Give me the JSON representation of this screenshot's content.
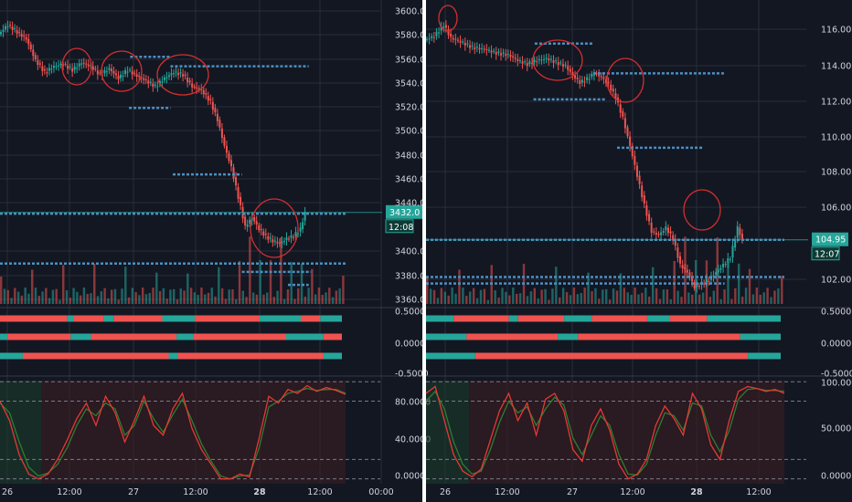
{
  "colors": {
    "background": "#131722",
    "grid": "#2a2e39",
    "up": "#26a69a",
    "down": "#ef5350",
    "axis_text": "#d1d4dc",
    "level": "#4a90c2",
    "annotation": "#d32f2f",
    "k_line": "#e53935",
    "d_line": "#2e7d32",
    "divider": "#ffffff"
  },
  "chart_data": [
    {
      "type": "candlestick",
      "panel": "left",
      "price_axis": {
        "ticks": [
          "3600.0",
          "3580.0",
          "3560.0",
          "3540.0",
          "3520.0",
          "3500.0",
          "3480.0",
          "3460.0",
          "3440.0",
          "3400.0",
          "3380.0",
          "3360.0"
        ],
        "ylim": [
          3355,
          3607
        ]
      },
      "last_price": {
        "value": "3432.0",
        "countdown": "12:08"
      },
      "time_axis": [
        "26",
        "12:00",
        "27",
        "12:00",
        "28",
        "12:00",
        "00:00"
      ],
      "close_path": [
        [
          0,
          3582
        ],
        [
          8,
          3590
        ],
        [
          16,
          3584
        ],
        [
          24,
          3578
        ],
        [
          32,
          3560
        ],
        [
          40,
          3550
        ],
        [
          48,
          3555
        ],
        [
          56,
          3557
        ],
        [
          64,
          3552
        ],
        [
          72,
          3558
        ],
        [
          80,
          3555
        ],
        [
          88,
          3548
        ],
        [
          96,
          3553
        ],
        [
          104,
          3545
        ],
        [
          112,
          3552
        ],
        [
          120,
          3547
        ],
        [
          128,
          3543
        ],
        [
          136,
          3538
        ],
        [
          144,
          3545
        ],
        [
          152,
          3550
        ],
        [
          160,
          3548
        ],
        [
          168,
          3538
        ],
        [
          176,
          3535
        ],
        [
          184,
          3525
        ],
        [
          190,
          3510
        ],
        [
          196,
          3488
        ],
        [
          202,
          3470
        ],
        [
          208,
          3445
        ],
        [
          214,
          3420
        ],
        [
          220,
          3428
        ],
        [
          226,
          3418
        ],
        [
          232,
          3412
        ],
        [
          238,
          3408
        ],
        [
          244,
          3406
        ],
        [
          250,
          3410
        ],
        [
          256,
          3412
        ],
        [
          262,
          3418
        ],
        [
          266,
          3432
        ]
      ],
      "levels": [
        {
          "price": 3563,
          "from": 113,
          "to": 148
        },
        {
          "price": 3555,
          "from": 148,
          "to": 268
        },
        {
          "price": 3520,
          "from": 112,
          "to": 148
        },
        {
          "price": 3464,
          "from": 150,
          "to": 210
        },
        {
          "price": 3431,
          "from": 0,
          "to": 300
        },
        {
          "price": 3389,
          "from": 0,
          "to": 300
        },
        {
          "price": 3382,
          "from": 210,
          "to": 270
        },
        {
          "price": 3371,
          "from": 250,
          "to": 268
        }
      ],
      "trend_bars": [
        {
          "value": "0.5000",
          "segments": [
            [
              "down",
              62
            ],
            [
              "up",
              6
            ],
            [
              "down",
              28
            ],
            [
              "up",
              9
            ],
            [
              "down",
              45
            ],
            [
              "up",
              30
            ],
            [
              "down",
              60
            ],
            [
              "up",
              38
            ],
            [
              "down",
              18
            ],
            [
              "up",
              20
            ]
          ]
        },
        {
          "value": "0.0000",
          "segments": [
            [
              "up",
              8
            ],
            [
              "down",
              68
            ],
            [
              "up",
              22
            ],
            [
              "down",
              92
            ],
            [
              "up",
              18
            ],
            [
              "down",
              100
            ],
            [
              "up",
              40
            ],
            [
              "down",
              20
            ]
          ]
        },
        {
          "value": "-0.5000",
          "segments": [
            [
              "up",
              25
            ],
            [
              "down",
              160
            ],
            [
              "up",
              10
            ],
            [
              "down",
              160
            ],
            [
              "up",
              20
            ]
          ]
        }
      ],
      "stochastic": {
        "ticks": [
          "80.0000",
          "40.0000",
          "0.0000"
        ],
        "ylim": [
          -5,
          103
        ],
        "k": [
          80,
          60,
          25,
          5,
          0,
          5,
          20,
          40,
          62,
          78,
          55,
          85,
          68,
          38,
          60,
          85,
          55,
          45,
          72,
          88,
          52,
          30,
          15,
          0,
          0,
          5,
          2,
          42,
          85,
          78,
          92,
          88,
          96,
          90,
          94,
          91,
          87
        ],
        "d": [
          78,
          68,
          38,
          12,
          3,
          6,
          15,
          32,
          55,
          72,
          65,
          78,
          72,
          45,
          55,
          80,
          62,
          48,
          66,
          82,
          60,
          36,
          18,
          3,
          0,
          3,
          4,
          32,
          74,
          80,
          88,
          90,
          93,
          91,
          92,
          92,
          88
        ]
      }
    },
    {
      "type": "candlestick",
      "panel": "right",
      "price_axis": {
        "ticks": [
          "116.00",
          "114.00",
          "112.00",
          "110.00",
          "108.00",
          "106.00",
          "102.00"
        ],
        "ylim": [
          101.5,
          117.6
        ]
      },
      "last_price": {
        "value": "104.95",
        "countdown": "12:07"
      },
      "time_axis": [
        "26",
        "12:00",
        "27",
        "12:00",
        "28",
        "12:00"
      ],
      "close_path": [
        [
          0,
          115.7
        ],
        [
          8,
          115.9
        ],
        [
          16,
          116.5
        ],
        [
          22,
          115.8
        ],
        [
          30,
          115.6
        ],
        [
          40,
          115.3
        ],
        [
          50,
          115.2
        ],
        [
          60,
          115.0
        ],
        [
          70,
          114.9
        ],
        [
          78,
          114.6
        ],
        [
          86,
          114.4
        ],
        [
          94,
          114.6
        ],
        [
          102,
          114.7
        ],
        [
          110,
          114.5
        ],
        [
          118,
          114.3
        ],
        [
          124,
          113.8
        ],
        [
          130,
          113.4
        ],
        [
          136,
          113.6
        ],
        [
          142,
          113.9
        ],
        [
          148,
          113.7
        ],
        [
          154,
          113.3
        ],
        [
          160,
          112.6
        ],
        [
          166,
          111.5
        ],
        [
          172,
          110.0
        ],
        [
          178,
          108.4
        ],
        [
          184,
          106.8
        ],
        [
          190,
          105.4
        ],
        [
          196,
          105.2
        ],
        [
          202,
          105.6
        ],
        [
          208,
          105.0
        ],
        [
          214,
          103.6
        ],
        [
          220,
          103.2
        ],
        [
          226,
          102.4
        ],
        [
          232,
          102.6
        ],
        [
          238,
          102.8
        ],
        [
          244,
          103.2
        ],
        [
          250,
          103.6
        ],
        [
          256,
          104.0
        ],
        [
          262,
          105.6
        ],
        [
          266,
          104.95
        ]
      ],
      "levels": [
        {
          "price": 115.5,
          "from": 91,
          "to": 140
        },
        {
          "price": 113.9,
          "from": 140,
          "to": 250
        },
        {
          "price": 112.5,
          "from": 90,
          "to": 150
        },
        {
          "price": 109.9,
          "from": 160,
          "to": 232
        },
        {
          "price": 104.95,
          "from": 0,
          "to": 300
        },
        {
          "price": 102.95,
          "from": 0,
          "to": 300
        },
        {
          "price": 102.6,
          "from": 0,
          "to": 250
        }
      ],
      "trend_bars": [
        {
          "value": "0.5000",
          "segments": [
            [
              "up",
              30
            ],
            [
              "down",
              60
            ],
            [
              "up",
              10
            ],
            [
              "down",
              50
            ],
            [
              "up",
              30
            ],
            [
              "down",
              60
            ],
            [
              "up",
              25
            ],
            [
              "down",
              40
            ],
            [
              "up",
              80
            ]
          ]
        },
        {
          "value": "0.0000",
          "segments": [
            [
              "up",
              40
            ],
            [
              "down",
              90
            ],
            [
              "up",
              20
            ],
            [
              "down",
              160
            ],
            [
              "up",
              40
            ]
          ]
        },
        {
          "value": "-0.5000",
          "segments": [
            [
              "up",
              45
            ],
            [
              "down",
              250
            ],
            [
              "up",
              30
            ]
          ]
        }
      ],
      "stochastic": {
        "ticks": [
          "100.0000",
          "50.0000",
          "0.0000"
        ],
        "ylim": [
          -5,
          103
        ],
        "k": [
          88,
          95,
          60,
          25,
          8,
          2,
          10,
          40,
          70,
          88,
          60,
          78,
          45,
          82,
          88,
          70,
          30,
          18,
          55,
          72,
          50,
          15,
          0,
          5,
          20,
          55,
          75,
          62,
          45,
          88,
          72,
          35,
          20,
          60,
          90,
          95,
          93,
          90,
          92,
          88
        ],
        "d": [
          80,
          90,
          72,
          38,
          15,
          5,
          8,
          30,
          58,
          80,
          68,
          74,
          55,
          72,
          84,
          76,
          42,
          25,
          45,
          65,
          55,
          25,
          5,
          4,
          15,
          45,
          68,
          65,
          50,
          78,
          75,
          45,
          28,
          50,
          82,
          92,
          93,
          91,
          91,
          90
        ]
      }
    }
  ]
}
